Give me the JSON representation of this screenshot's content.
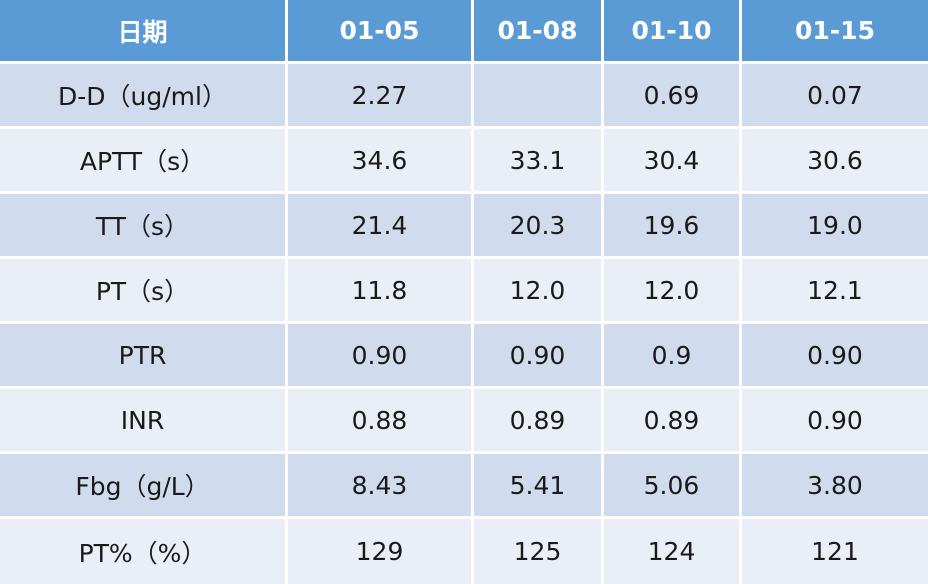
{
  "table": {
    "header": [
      "日期",
      "01-05",
      "01-08",
      "01-10",
      "01-15"
    ],
    "rows": [
      [
        "D-D（ug/ml）",
        "2.27",
        "",
        "0.69",
        "0.07"
      ],
      [
        "APTT（s）",
        "34.6",
        "33.1",
        "30.4",
        "30.6"
      ],
      [
        "TT（s）",
        "21.4",
        "20.3",
        "19.6",
        "19.0"
      ],
      [
        "PT（s）",
        "11.8",
        "12.0",
        "12.0",
        "12.1"
      ],
      [
        "PTR",
        "0.90",
        "0.90",
        "0.9",
        "0.90"
      ],
      [
        "INR",
        "0.88",
        "0.89",
        "0.89",
        "0.90"
      ],
      [
        "Fbg（g/L）",
        "8.43",
        "5.41",
        "5.06",
        "3.80"
      ],
      [
        "PT%（%）",
        "129",
        "125",
        "124",
        "121"
      ]
    ]
  },
  "colors": {
    "header_bg": "#5b9bd5",
    "header_text": "#ffffff",
    "row_odd_bg": "#d0dbee",
    "row_even_bg": "#e9eef7",
    "cell_text": "#1a1a1a"
  }
}
